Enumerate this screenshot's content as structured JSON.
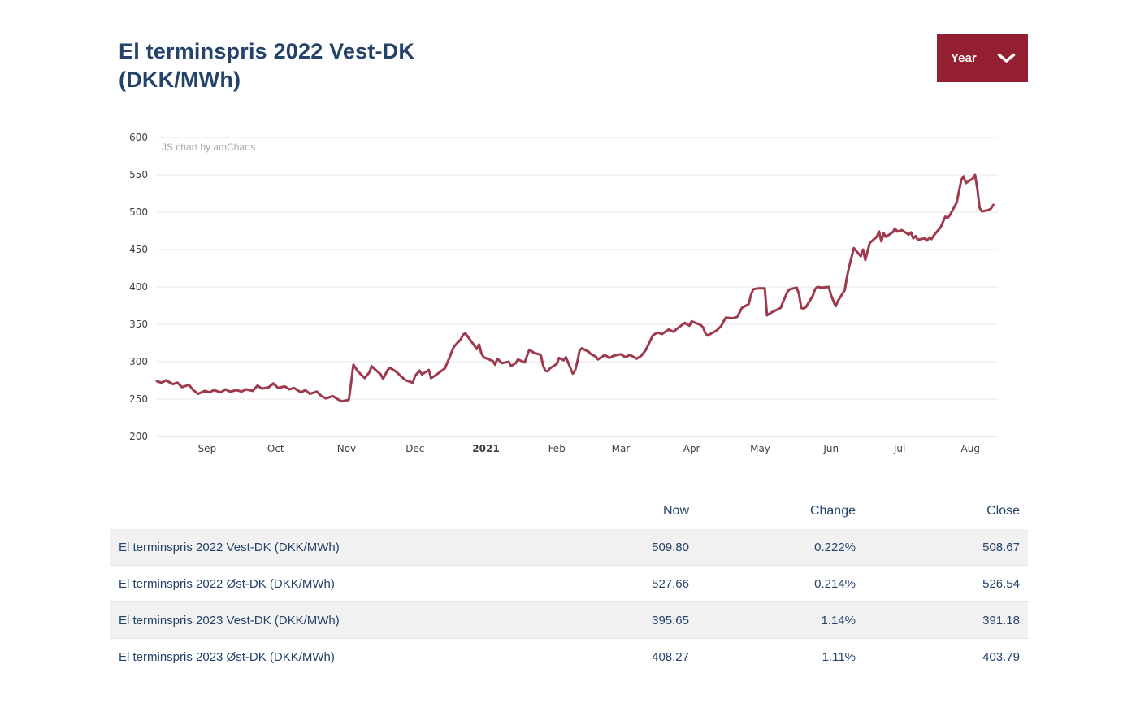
{
  "page": {
    "title_line1": "El terminspris 2022 Vest-DK",
    "title_line2": "(DKK/MWh)"
  },
  "controls": {
    "period_selector": {
      "label": "Year",
      "icon": "chevron-down-icon"
    }
  },
  "chart": {
    "watermark": "JS chart by amCharts",
    "colors": {
      "line": "#9e3a4d",
      "grid": "#e7e7e7",
      "axis_line": "#cfcfcf",
      "axis_text": "#3f3f3f",
      "title_navy": "#25426b",
      "button_maroon": "#941f30"
    }
  },
  "chart_data": {
    "type": "line",
    "title": "El terminspris 2022 Vest-DK (DKK/MWh)",
    "x_type": "date",
    "x_range": [
      "2020-08-10",
      "2021-08-13"
    ],
    "ylim": [
      200,
      600
    ],
    "y_ticks": [
      200,
      250,
      300,
      350,
      400,
      450,
      500,
      550,
      600
    ],
    "grid": "horizontal-only",
    "legend": "none",
    "x_tick_labels": [
      {
        "label": "Sep",
        "date": "2020-09-01",
        "bold": false
      },
      {
        "label": "Oct",
        "date": "2020-10-01",
        "bold": false
      },
      {
        "label": "Nov",
        "date": "2020-11-01",
        "bold": false
      },
      {
        "label": "Dec",
        "date": "2020-12-01",
        "bold": false
      },
      {
        "label": "2021",
        "date": "2021-01-01",
        "bold": true
      },
      {
        "label": "Feb",
        "date": "2021-02-01",
        "bold": false
      },
      {
        "label": "Mar",
        "date": "2021-03-01",
        "bold": false
      },
      {
        "label": "Apr",
        "date": "2021-04-01",
        "bold": false
      },
      {
        "label": "May",
        "date": "2021-05-01",
        "bold": false
      },
      {
        "label": "Jun",
        "date": "2021-06-01",
        "bold": false
      },
      {
        "label": "Jul",
        "date": "2021-07-01",
        "bold": false
      },
      {
        "label": "Aug",
        "date": "2021-08-01",
        "bold": false
      }
    ],
    "series": [
      {
        "name": "El terminspris 2022 Vest-DK (DKK/MWh)",
        "color": "#9e3a4d",
        "points": [
          [
            "2020-08-10",
            274
          ],
          [
            "2020-08-12",
            272
          ],
          [
            "2020-08-14",
            275
          ],
          [
            "2020-08-17",
            270
          ],
          [
            "2020-08-19",
            272
          ],
          [
            "2020-08-21",
            266
          ],
          [
            "2020-08-24",
            269
          ],
          [
            "2020-08-26",
            262
          ],
          [
            "2020-08-28",
            257
          ],
          [
            "2020-08-31",
            261
          ],
          [
            "2020-09-02",
            259
          ],
          [
            "2020-09-04",
            262
          ],
          [
            "2020-09-07",
            259
          ],
          [
            "2020-09-09",
            263
          ],
          [
            "2020-09-11",
            260
          ],
          [
            "2020-09-14",
            262
          ],
          [
            "2020-09-16",
            260
          ],
          [
            "2020-09-18",
            263
          ],
          [
            "2020-09-21",
            261
          ],
          [
            "2020-09-23",
            268
          ],
          [
            "2020-09-25",
            264
          ],
          [
            "2020-09-28",
            266
          ],
          [
            "2020-09-30",
            271
          ],
          [
            "2020-10-02",
            265
          ],
          [
            "2020-10-05",
            267
          ],
          [
            "2020-10-07",
            263
          ],
          [
            "2020-10-09",
            265
          ],
          [
            "2020-10-12",
            259
          ],
          [
            "2020-10-14",
            262
          ],
          [
            "2020-10-16",
            257
          ],
          [
            "2020-10-19",
            260
          ],
          [
            "2020-10-21",
            254
          ],
          [
            "2020-10-23",
            251
          ],
          [
            "2020-10-26",
            254
          ],
          [
            "2020-10-28",
            250
          ],
          [
            "2020-10-30",
            247
          ],
          [
            "2020-11-02",
            249
          ],
          [
            "2020-11-03",
            272
          ],
          [
            "2020-11-04",
            296
          ],
          [
            "2020-11-06",
            287
          ],
          [
            "2020-11-09",
            278
          ],
          [
            "2020-11-11",
            286
          ],
          [
            "2020-11-12",
            294
          ],
          [
            "2020-11-13",
            291
          ],
          [
            "2020-11-16",
            283
          ],
          [
            "2020-11-17",
            277
          ],
          [
            "2020-11-19",
            289
          ],
          [
            "2020-11-20",
            292
          ],
          [
            "2020-11-23",
            286
          ],
          [
            "2020-11-25",
            280
          ],
          [
            "2020-11-27",
            275
          ],
          [
            "2020-11-30",
            272
          ],
          [
            "2020-12-01",
            281
          ],
          [
            "2020-12-03",
            288
          ],
          [
            "2020-12-04",
            283
          ],
          [
            "2020-12-07",
            289
          ],
          [
            "2020-12-08",
            278
          ],
          [
            "2020-12-10",
            282
          ],
          [
            "2020-12-14",
            291
          ],
          [
            "2020-12-16",
            305
          ],
          [
            "2020-12-17",
            313
          ],
          [
            "2020-12-18",
            320
          ],
          [
            "2020-12-21",
            330
          ],
          [
            "2020-12-22",
            336
          ],
          [
            "2020-12-23",
            338
          ],
          [
            "2020-12-28",
            317
          ],
          [
            "2020-12-29",
            323
          ],
          [
            "2020-12-30",
            311
          ],
          [
            "2020-12-31",
            306
          ],
          [
            "2021-01-04",
            301
          ],
          [
            "2021-01-05",
            296
          ],
          [
            "2021-01-06",
            304
          ],
          [
            "2021-01-08",
            298
          ],
          [
            "2021-01-11",
            300
          ],
          [
            "2021-01-12",
            294
          ],
          [
            "2021-01-14",
            298
          ],
          [
            "2021-01-15",
            303
          ],
          [
            "2021-01-18",
            299
          ],
          [
            "2021-01-19",
            308
          ],
          [
            "2021-01-20",
            316
          ],
          [
            "2021-01-22",
            312
          ],
          [
            "2021-01-25",
            309
          ],
          [
            "2021-01-26",
            295
          ],
          [
            "2021-01-27",
            288
          ],
          [
            "2021-01-28",
            287
          ],
          [
            "2021-01-29",
            291
          ],
          [
            "2021-02-01",
            297
          ],
          [
            "2021-02-02",
            305
          ],
          [
            "2021-02-04",
            302
          ],
          [
            "2021-02-05",
            306
          ],
          [
            "2021-02-08",
            284
          ],
          [
            "2021-02-09",
            288
          ],
          [
            "2021-02-10",
            300
          ],
          [
            "2021-02-11",
            315
          ],
          [
            "2021-02-12",
            318
          ],
          [
            "2021-02-15",
            313
          ],
          [
            "2021-02-16",
            310
          ],
          [
            "2021-02-18",
            307
          ],
          [
            "2021-02-19",
            303
          ],
          [
            "2021-02-22",
            309
          ],
          [
            "2021-02-24",
            305
          ],
          [
            "2021-02-26",
            308
          ],
          [
            "2021-03-01",
            310
          ],
          [
            "2021-03-03",
            306
          ],
          [
            "2021-03-05",
            309
          ],
          [
            "2021-03-08",
            304
          ],
          [
            "2021-03-10",
            308
          ],
          [
            "2021-03-12",
            316
          ],
          [
            "2021-03-15",
            335
          ],
          [
            "2021-03-17",
            339
          ],
          [
            "2021-03-19",
            337
          ],
          [
            "2021-03-22",
            343
          ],
          [
            "2021-03-24",
            340
          ],
          [
            "2021-03-26",
            345
          ],
          [
            "2021-03-29",
            352
          ],
          [
            "2021-03-31",
            348
          ],
          [
            "2021-04-01",
            354
          ],
          [
            "2021-04-05",
            349
          ],
          [
            "2021-04-06",
            346
          ],
          [
            "2021-04-07",
            338
          ],
          [
            "2021-04-08",
            335
          ],
          [
            "2021-04-12",
            342
          ],
          [
            "2021-04-14",
            348
          ],
          [
            "2021-04-15",
            354
          ],
          [
            "2021-04-16",
            359
          ],
          [
            "2021-04-19",
            358
          ],
          [
            "2021-04-21",
            360
          ],
          [
            "2021-04-22",
            366
          ],
          [
            "2021-04-23",
            372
          ],
          [
            "2021-04-26",
            377
          ],
          [
            "2021-04-27",
            390
          ],
          [
            "2021-04-28",
            397
          ],
          [
            "2021-04-30",
            398
          ],
          [
            "2021-05-03",
            398
          ],
          [
            "2021-05-04",
            362
          ],
          [
            "2021-05-06",
            366
          ],
          [
            "2021-05-10",
            372
          ],
          [
            "2021-05-11",
            380
          ],
          [
            "2021-05-12",
            387
          ],
          [
            "2021-05-13",
            394
          ],
          [
            "2021-05-14",
            397
          ],
          [
            "2021-05-17",
            399
          ],
          [
            "2021-05-18",
            390
          ],
          [
            "2021-05-19",
            372
          ],
          [
            "2021-05-20",
            371
          ],
          [
            "2021-05-21",
            373
          ],
          [
            "2021-05-24",
            388
          ],
          [
            "2021-05-25",
            397
          ],
          [
            "2021-05-26",
            400
          ],
          [
            "2021-05-28",
            399
          ],
          [
            "2021-05-31",
            400
          ],
          [
            "2021-06-01",
            389
          ],
          [
            "2021-06-03",
            374
          ],
          [
            "2021-06-04",
            381
          ],
          [
            "2021-06-07",
            396
          ],
          [
            "2021-06-08",
            414
          ],
          [
            "2021-06-09",
            428
          ],
          [
            "2021-06-10",
            440
          ],
          [
            "2021-06-11",
            452
          ],
          [
            "2021-06-14",
            441
          ],
          [
            "2021-06-15",
            450
          ],
          [
            "2021-06-16",
            436
          ],
          [
            "2021-06-17",
            448
          ],
          [
            "2021-06-18",
            459
          ],
          [
            "2021-06-21",
            467
          ],
          [
            "2021-06-22",
            474
          ],
          [
            "2021-06-23",
            461
          ],
          [
            "2021-06-24",
            472
          ],
          [
            "2021-06-25",
            467
          ],
          [
            "2021-06-28",
            473
          ],
          [
            "2021-06-29",
            478
          ],
          [
            "2021-06-30",
            474
          ],
          [
            "2021-07-02",
            476
          ],
          [
            "2021-07-05",
            470
          ],
          [
            "2021-07-06",
            473
          ],
          [
            "2021-07-07",
            465
          ],
          [
            "2021-07-08",
            468
          ],
          [
            "2021-07-09",
            463
          ],
          [
            "2021-07-12",
            465
          ],
          [
            "2021-07-13",
            462
          ],
          [
            "2021-07-14",
            466
          ],
          [
            "2021-07-15",
            464
          ],
          [
            "2021-07-16",
            469
          ],
          [
            "2021-07-19",
            480
          ],
          [
            "2021-07-20",
            487
          ],
          [
            "2021-07-21",
            494
          ],
          [
            "2021-07-22",
            492
          ],
          [
            "2021-07-23",
            496
          ],
          [
            "2021-07-26",
            513
          ],
          [
            "2021-07-27",
            528
          ],
          [
            "2021-07-28",
            543
          ],
          [
            "2021-07-29",
            548
          ],
          [
            "2021-07-30",
            539
          ],
          [
            "2021-08-02",
            545
          ],
          [
            "2021-08-03",
            550
          ],
          [
            "2021-08-04",
            532
          ],
          [
            "2021-08-05",
            506
          ],
          [
            "2021-08-06",
            501
          ],
          [
            "2021-08-09",
            503
          ],
          [
            "2021-08-10",
            505
          ],
          [
            "2021-08-11",
            509.8
          ]
        ]
      }
    ]
  },
  "table": {
    "headers": [
      {
        "label": "Now"
      },
      {
        "label": "Change"
      },
      {
        "label": "Close"
      }
    ],
    "rows": [
      {
        "name": "El terminspris 2022 Vest-DK (DKK/MWh)",
        "now": "509.80",
        "change": "0.222%",
        "close": "508.67"
      },
      {
        "name": "El terminspris 2022 Øst-DK (DKK/MWh)",
        "now": "527.66",
        "change": "0.214%",
        "close": "526.54"
      },
      {
        "name": "El terminspris 2023 Vest-DK (DKK/MWh)",
        "now": "395.65",
        "change": "1.14%",
        "close": "391.18"
      },
      {
        "name": "El terminspris 2023 Øst-DK (DKK/MWh)",
        "now": "408.27",
        "change": "1.11%",
        "close": "403.79"
      }
    ]
  }
}
